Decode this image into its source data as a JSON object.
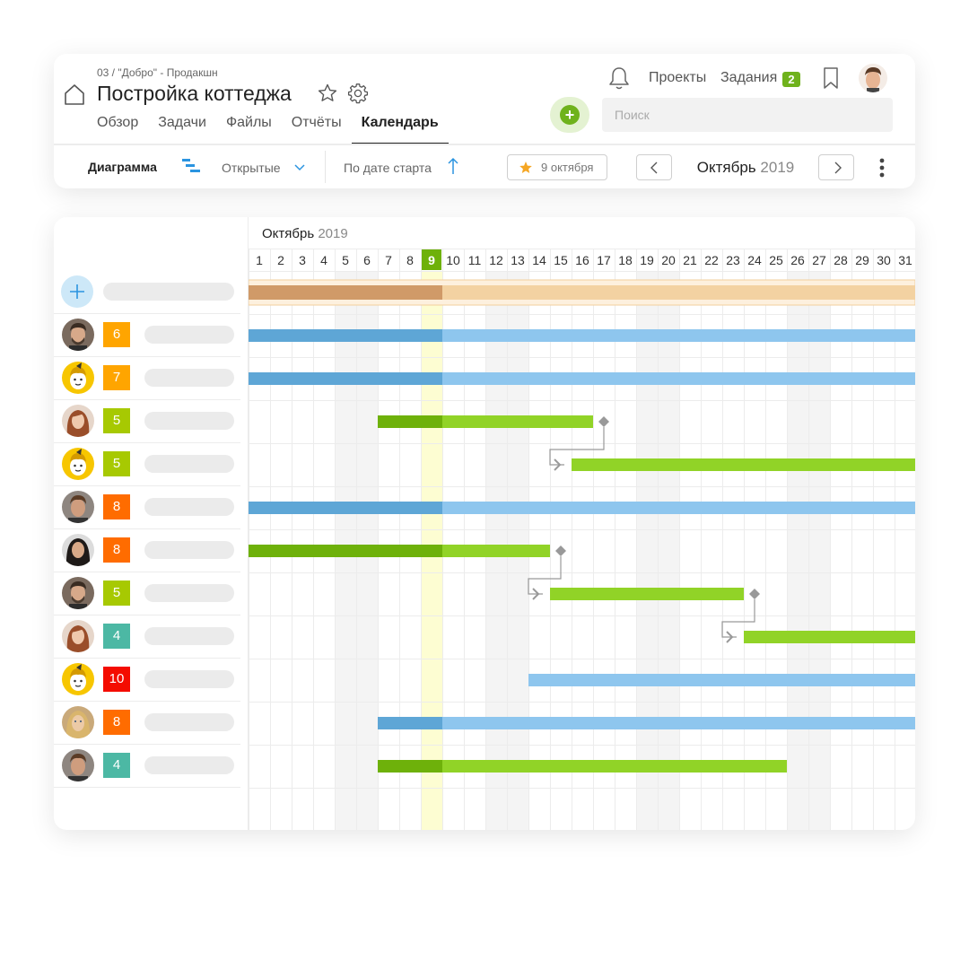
{
  "header": {
    "breadcrumb": "03 / \"Добро\" - Продакшн",
    "title": "Постройка коттеджа",
    "tabs": [
      {
        "label": "Обзор",
        "active": false
      },
      {
        "label": "Задачи",
        "active": false
      },
      {
        "label": "Файлы",
        "active": false
      },
      {
        "label": "Отчёты",
        "active": false
      },
      {
        "label": "Календарь",
        "active": true
      }
    ],
    "search_placeholder": "Поиск",
    "nav_projects": "Проекты",
    "nav_tasks": "Задания",
    "tasks_count": "2"
  },
  "toolbar": {
    "view_label": "Диаграмма",
    "filter_label": "Открытые",
    "sort_label": "По дате старта",
    "today_label": "9 октября",
    "month": "Октябрь",
    "year": "2019"
  },
  "gantt": {
    "month": "Октябрь",
    "year": "2019",
    "days": [
      "1",
      "2",
      "3",
      "4",
      "5",
      "6",
      "7",
      "8",
      "9",
      "10",
      "11",
      "12",
      "13",
      "14",
      "15",
      "16",
      "17",
      "18",
      "19",
      "20",
      "21",
      "22",
      "23",
      "24",
      "25",
      "26",
      "27",
      "28",
      "29",
      "30",
      "31"
    ],
    "today": 9,
    "weekend_days": [
      5,
      6,
      12,
      13,
      19,
      20,
      26,
      27
    ],
    "colors": {
      "green_bar": "#91d327",
      "green_bar_past": "#6eb10a",
      "blue_bar": "#8ec6ee",
      "blue_bar_past": "#5ea6d6",
      "summary_bar": "#f3d2a2",
      "summary_bar_past": "#d09a68",
      "today_col": "#fdfdd2",
      "weekend_col": "#f4f4f4"
    },
    "summary": {
      "start": 1,
      "end": 31
    },
    "rows": [
      {
        "avatar": "man-beard-icon",
        "count": "6",
        "badge_color": "#ffa500",
        "bar": {
          "start": 1,
          "end": 31,
          "color": "blue"
        }
      },
      {
        "avatar": "yellow-character-icon",
        "count": "7",
        "badge_color": "#ffa500",
        "bar": {
          "start": 1,
          "end": 31,
          "color": "blue"
        }
      },
      {
        "avatar": "woman-red-hair-icon",
        "count": "5",
        "badge_color": "#a7c902",
        "bar": {
          "start": 7,
          "end": 16,
          "color": "green"
        },
        "milestone": 17
      },
      {
        "avatar": "yellow-character-icon",
        "count": "5",
        "badge_color": "#a7c902",
        "bar": {
          "start": 16,
          "end": 31,
          "color": "green"
        },
        "dep_from_row": 2
      },
      {
        "avatar": "man-brown-hair-icon",
        "count": "8",
        "badge_color": "#ff6c00",
        "bar": {
          "start": 1,
          "end": 31,
          "color": "blue"
        }
      },
      {
        "avatar": "woman-dark-hair-icon",
        "count": "8",
        "badge_color": "#ff6c00",
        "bar": {
          "start": 1,
          "end": 14,
          "color": "green"
        },
        "milestone": 15
      },
      {
        "avatar": "man-beard-icon",
        "count": "5",
        "badge_color": "#a7c902",
        "bar": {
          "start": 15,
          "end": 23,
          "color": "green"
        },
        "dep_from_row": 5,
        "milestone": 24
      },
      {
        "avatar": "woman-red-hair-icon",
        "count": "4",
        "badge_color": "#4cb8a4",
        "bar": {
          "start": 24,
          "end": 31,
          "color": "green"
        },
        "dep_from_row": 6
      },
      {
        "avatar": "yellow-character-icon",
        "count": "10",
        "badge_color": "#f40c00",
        "bar": {
          "start": 14,
          "end": 31,
          "color": "blue"
        }
      },
      {
        "avatar": "woman-blonde-icon",
        "count": "8",
        "badge_color": "#ff6c00",
        "bar": {
          "start": 7,
          "end": 31,
          "color": "blue"
        }
      },
      {
        "avatar": "man-brown-hair-icon",
        "count": "4",
        "badge_color": "#4cb8a4",
        "bar": {
          "start": 7,
          "end": 25,
          "color": "green"
        }
      }
    ]
  }
}
